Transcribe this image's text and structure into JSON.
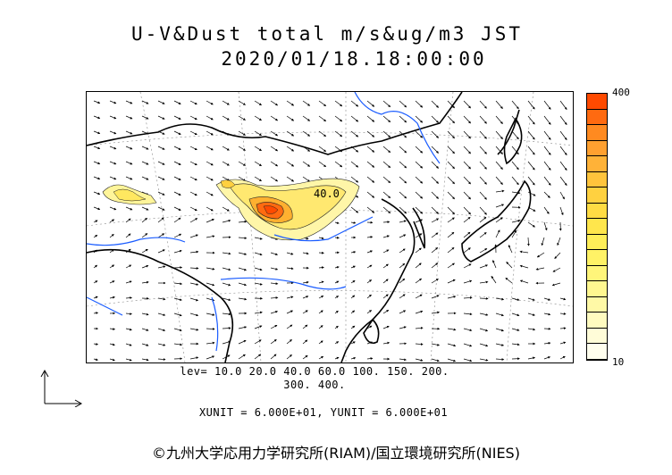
{
  "title": {
    "line1": "U-V&Dust total m/s&ug/m3 JST",
    "line2": "2020/01/18.18:00:00"
  },
  "colorbar": {
    "max_label": "400",
    "min_label": "10",
    "colors": [
      "#ff4a00",
      "#ff6a10",
      "#ff8a20",
      "#ffa030",
      "#ffb238",
      "#ffc43c",
      "#ffd140",
      "#ffdc44",
      "#ffe64c",
      "#ffee58",
      "#fff266",
      "#fff57a",
      "#fff790",
      "#fff9a6",
      "#fffbc0",
      "#fffcd8",
      "#fffeee"
    ]
  },
  "levels": {
    "line1": "lev= 10.0 20.0 40.0 60.0 100. 150. 200.",
    "line2": "300. 400."
  },
  "units": "XUNIT = 6.000E+01, YUNIT = 6.000E+01",
  "copyright": "©九州大学応用力学研究所(RIAM)/国立環境研究所(NIES)",
  "map": {
    "contour_label": "40.0",
    "icons": [
      "wind-vector-field",
      "dust-concentration-contours",
      "coastline",
      "river",
      "graticule"
    ]
  }
}
